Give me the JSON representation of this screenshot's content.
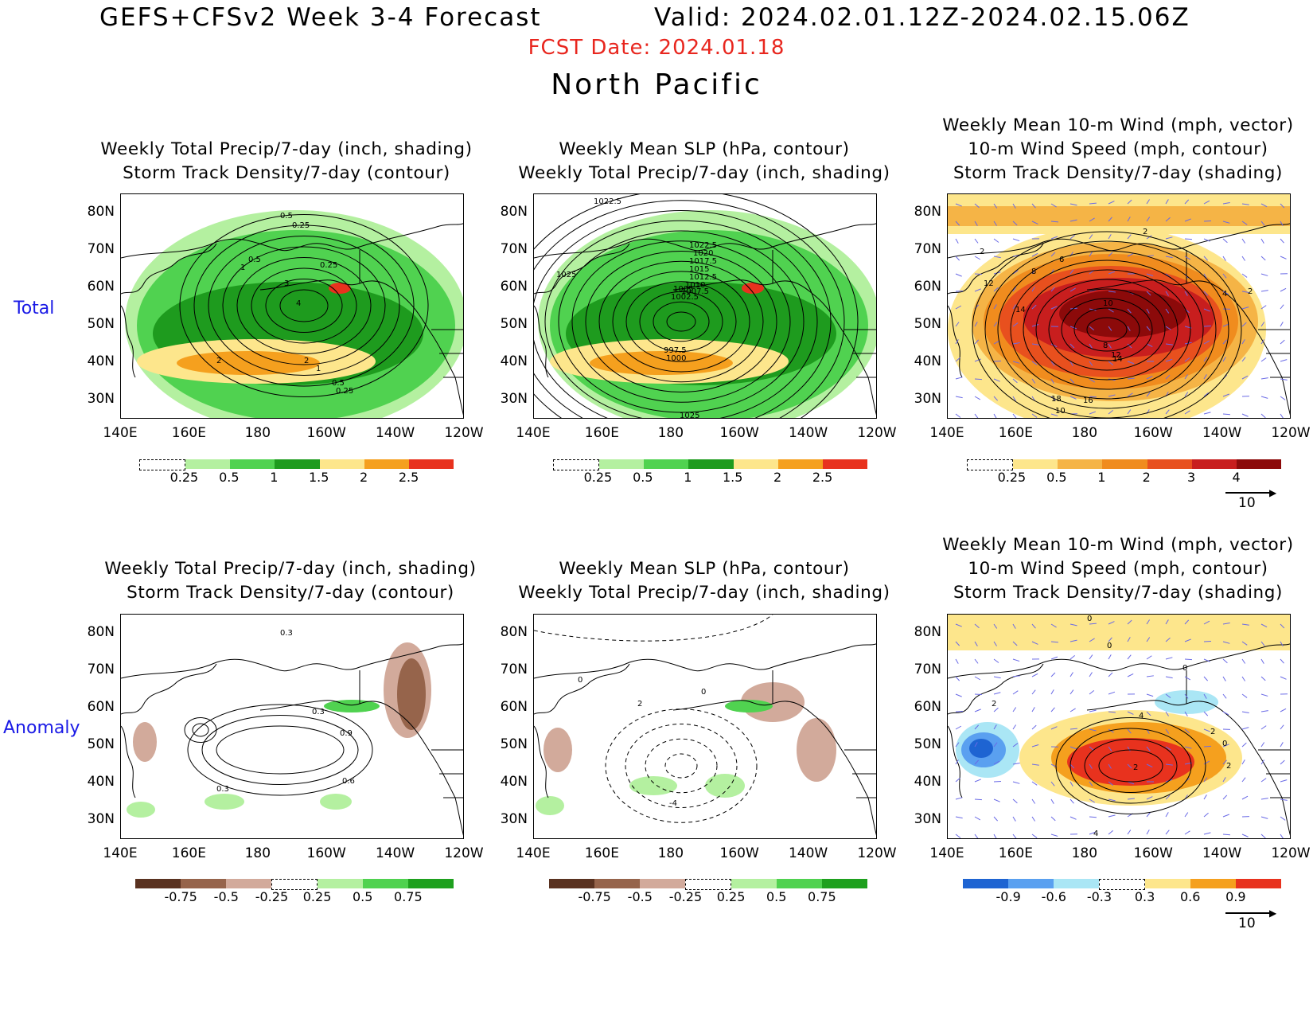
{
  "header": {
    "main_title": "GEFS+CFSv2 Week 3-4 Forecast",
    "valid": "Valid: 2024.02.01.12Z-2024.02.15.06Z",
    "fcst_date": "FCST Date: 2024.01.18",
    "region": "North Pacific"
  },
  "row_labels": {
    "total": "Total",
    "anomaly": "Anomaly"
  },
  "panel_titles": {
    "precip": [
      "Weekly Total Precip/7-day (inch, shading)",
      "Storm Track Density/7-day (contour)"
    ],
    "slp": [
      "Weekly Mean SLP (hPa, contour)",
      "Weekly Total Precip/7-day (inch, shading)"
    ],
    "wind": [
      "Weekly Mean 10-m Wind (mph, vector)",
      "10-m Wind Speed (mph, contour)",
      "Storm Track Density/7-day (shading)"
    ]
  },
  "axes": {
    "lat_labels": [
      "80N",
      "70N",
      "60N",
      "50N",
      "40N",
      "30N"
    ],
    "lon_labels": [
      "140E",
      "160E",
      "180",
      "160W",
      "140W",
      "120W"
    ]
  },
  "colorbars": {
    "precip_total": {
      "ticks": [
        "0.25",
        "0.5",
        "1",
        "1.5",
        "2",
        "2.5"
      ],
      "colors": [
        "#ffffff",
        "#b4f0a0",
        "#50d250",
        "#1e9b1e",
        "#fde68c",
        "#f5a01e",
        "#e8321e"
      ]
    },
    "track_total": {
      "ticks": [
        "0.25",
        "0.5",
        "1",
        "2",
        "3",
        "4"
      ],
      "colors": [
        "#ffffff",
        "#fde68c",
        "#f5b446",
        "#f08c1e",
        "#e8501e",
        "#c81e1e",
        "#8c0a0a"
      ]
    },
    "precip_anom": {
      "ticks": [
        "-0.75",
        "-0.5",
        "-0.25",
        "0.25",
        "0.5",
        "0.75"
      ],
      "colors": [
        "#5a3220",
        "#96644b",
        "#d2aa9b",
        "#ffffff",
        "#b4f0a0",
        "#50d250",
        "#1ea01e"
      ]
    },
    "track_anom": {
      "ticks": [
        "-0.9",
        "-0.6",
        "-0.3",
        "0.3",
        "0.6",
        "0.9"
      ],
      "colors": [
        "#1e64d2",
        "#5aa0f0",
        "#aae6f5",
        "#ffffff",
        "#fde68c",
        "#f5a01e",
        "#e8321e"
      ]
    }
  },
  "vector_reference": "10",
  "contour_labels": {
    "total_precip": [
      "0.5",
      "0.25",
      "0.5",
      "1",
      "0.25",
      "2",
      "3",
      "4",
      "2",
      "1",
      "0.5",
      "0.25"
    ],
    "total_slp": [
      "1022.5",
      "1025",
      "1022.5",
      "1020",
      "1017.5",
      "1015",
      "1012.5",
      "1010",
      "1007.5",
      "1005",
      "1002.5",
      "997.5",
      "1000",
      "1025"
    ],
    "total_wind": [
      "2",
      "2",
      "6",
      "8",
      "12",
      "14",
      "10",
      "8",
      "12",
      "14",
      "18",
      "16",
      "10",
      "4",
      "2"
    ],
    "anom_precip": [
      "0.3",
      "0.3",
      "0.9",
      "0.6",
      "0.3"
    ],
    "anom_slp": [
      "0",
      "2",
      "0",
      "-4"
    ],
    "anom_wind": [
      "0",
      "0",
      "0",
      "2",
      "4",
      "2",
      "0",
      "2",
      "2",
      "4"
    ]
  }
}
